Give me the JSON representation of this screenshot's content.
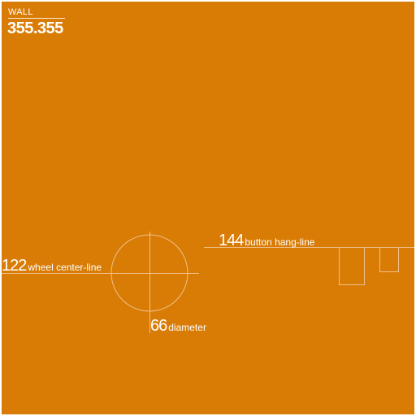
{
  "wall": {
    "label": "WALL",
    "value": "355.355"
  },
  "measurements": {
    "wheel": {
      "value": "122",
      "label": "wheel center-line"
    },
    "button": {
      "value": "144",
      "label": "button hang-line"
    },
    "diameter": {
      "value": "66",
      "label": "diameter"
    }
  },
  "colors": {
    "background": "#d97c06",
    "text": "#ffffff",
    "guide": "#f0c08a"
  }
}
